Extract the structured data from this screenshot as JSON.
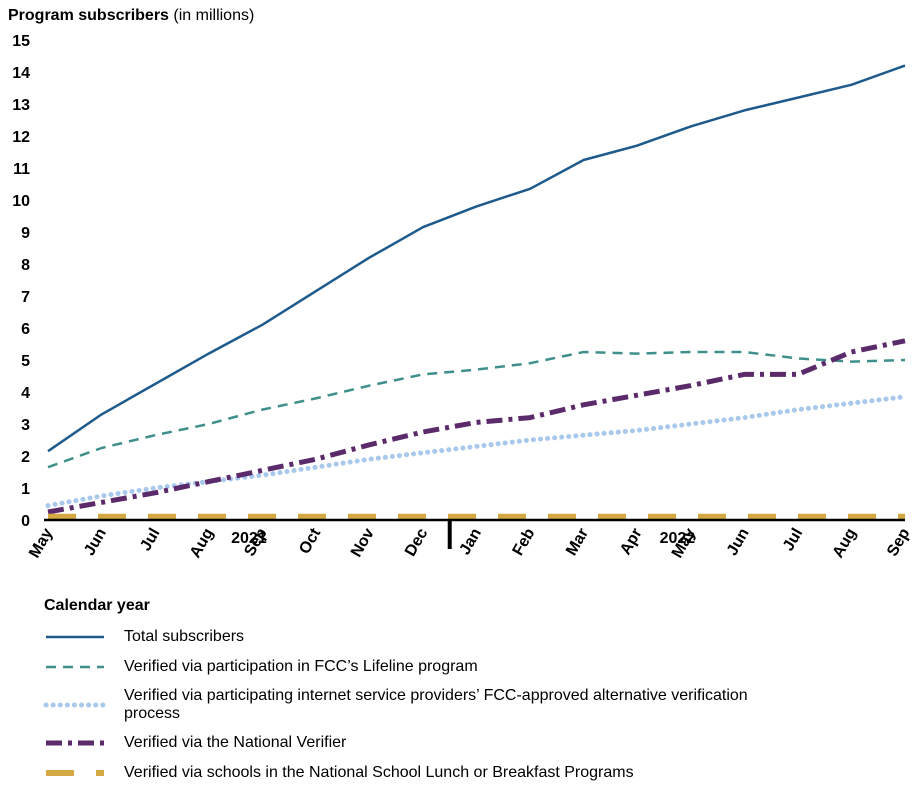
{
  "chart_data": {
    "type": "line",
    "title": "Program subscribers",
    "y_unit": "(in millions)",
    "x_label": "Calendar year",
    "categories": [
      "May",
      "Jun",
      "Jul",
      "Aug",
      "Sep",
      "Oct",
      "Nov",
      "Dec",
      "Jan",
      "Feb",
      "Mar",
      "Apr",
      "May",
      "Jun",
      "Jul",
      "Aug",
      "Sep"
    ],
    "year_groups": [
      {
        "label": "2021",
        "count": 8
      },
      {
        "label": "2022",
        "count": 9
      }
    ],
    "ylim": [
      0,
      15
    ],
    "yticks": [
      0,
      1,
      2,
      3,
      4,
      5,
      6,
      7,
      8,
      9,
      10,
      11,
      12,
      13,
      14,
      15
    ],
    "grid": false,
    "series": [
      {
        "name": "Total subscribers",
        "color": "#1f5a8c",
        "style": "solid",
        "values": [
          2.15,
          3.3,
          4.25,
          5.2,
          6.1,
          7.15,
          8.2,
          9.15,
          9.8,
          10.35,
          11.25,
          11.7,
          12.3,
          12.8,
          13.2,
          13.6,
          14.2
        ]
      },
      {
        "name": "Verified via participation in FCC’s Lifeline program",
        "color": "#3f8f8a",
        "style": "dashed",
        "values": [
          1.65,
          2.25,
          2.65,
          3.0,
          3.45,
          3.8,
          4.2,
          4.55,
          4.7,
          4.9,
          5.25,
          5.2,
          5.25,
          5.25,
          5.05,
          4.95,
          5.0
        ]
      },
      {
        "name": "Verified via participating internet service providers’ FCC-approved alternative verification process",
        "color": "#a8c8ec",
        "style": "dotted",
        "values": [
          0.45,
          0.75,
          1.0,
          1.2,
          1.4,
          1.65,
          1.9,
          2.1,
          2.3,
          2.5,
          2.65,
          2.8,
          3.0,
          3.2,
          3.45,
          3.65,
          3.85
        ]
      },
      {
        "name": "Verified via the National Verifier",
        "color": "#5b2a6b",
        "style": "dashdot",
        "values": [
          0.25,
          0.55,
          0.85,
          1.2,
          1.55,
          1.9,
          2.35,
          2.75,
          3.05,
          3.2,
          3.6,
          3.9,
          4.2,
          4.55,
          4.55,
          5.25,
          5.6
        ]
      },
      {
        "name": "Verified via schools in the National School Lunch or Breakfast Programs",
        "color": "#d4a843",
        "style": "longdash",
        "values": [
          0.1,
          0.1,
          0.1,
          0.1,
          0.1,
          0.1,
          0.1,
          0.1,
          0.1,
          0.1,
          0.1,
          0.1,
          0.1,
          0.1,
          0.1,
          0.1,
          0.1
        ]
      }
    ]
  }
}
